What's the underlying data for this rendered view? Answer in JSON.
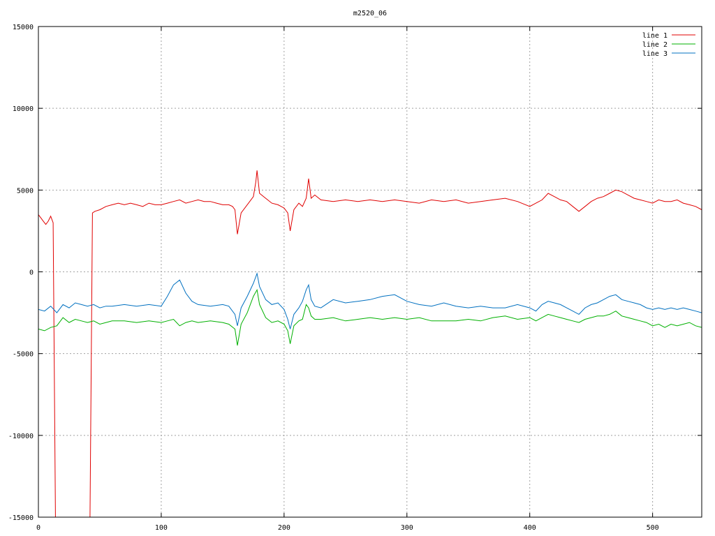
{
  "chart_data": {
    "type": "line",
    "title": "m2520_06",
    "xlabel": "",
    "ylabel": "",
    "xlim": [
      0,
      540
    ],
    "ylim": [
      -15000,
      15000
    ],
    "x_ticks": [
      0,
      100,
      200,
      300,
      400,
      500
    ],
    "y_ticks": [
      -15000,
      -10000,
      -5000,
      0,
      5000,
      10000,
      15000
    ],
    "grid": true,
    "legend_position": "top-right",
    "series": [
      {
        "name": "line 1",
        "color": "#e00000",
        "x": [
          0,
          2,
          4,
          6,
          8,
          10,
          12,
          14,
          16,
          30,
          40,
          42,
          44,
          46,
          50,
          55,
          60,
          65,
          70,
          75,
          80,
          85,
          90,
          95,
          100,
          105,
          110,
          115,
          120,
          125,
          130,
          135,
          140,
          145,
          150,
          155,
          158,
          160,
          162,
          165,
          170,
          175,
          177,
          178,
          180,
          185,
          190,
          195,
          200,
          203,
          205,
          208,
          212,
          215,
          218,
          220,
          222,
          225,
          230,
          240,
          250,
          260,
          270,
          280,
          290,
          300,
          310,
          320,
          330,
          340,
          350,
          360,
          370,
          380,
          390,
          400,
          405,
          410,
          415,
          420,
          425,
          430,
          435,
          440,
          445,
          450,
          455,
          460,
          465,
          470,
          475,
          480,
          485,
          490,
          495,
          500,
          505,
          510,
          515,
          520,
          525,
          530,
          535,
          540
        ],
        "y": [
          3500,
          3300,
          3100,
          2900,
          3100,
          3400,
          3000,
          -16000,
          -16000,
          -16000,
          -16000,
          -15000,
          3600,
          3700,
          3800,
          4000,
          4100,
          4200,
          4100,
          4200,
          4100,
          4000,
          4200,
          4100,
          4100,
          4200,
          4300,
          4400,
          4200,
          4300,
          4400,
          4300,
          4300,
          4200,
          4100,
          4100,
          4000,
          3800,
          2300,
          3600,
          4100,
          4600,
          5500,
          6200,
          4800,
          4500,
          4200,
          4100,
          3900,
          3600,
          2500,
          3800,
          4200,
          4000,
          4500,
          5700,
          4500,
          4700,
          4400,
          4300,
          4400,
          4300,
          4400,
          4300,
          4400,
          4300,
          4200,
          4400,
          4300,
          4400,
          4200,
          4300,
          4400,
          4500,
          4300,
          4000,
          4200,
          4400,
          4800,
          4600,
          4400,
          4300,
          4000,
          3700,
          4000,
          4300,
          4500,
          4600,
          4800,
          5000,
          4900,
          4700,
          4500,
          4400,
          4300,
          4200,
          4400,
          4300,
          4300,
          4400,
          4200,
          4100,
          4000,
          3800
        ]
      },
      {
        "name": "line 2",
        "color": "#00b000",
        "x": [
          0,
          5,
          10,
          15,
          20,
          25,
          30,
          35,
          40,
          45,
          50,
          55,
          60,
          70,
          80,
          90,
          100,
          105,
          110,
          115,
          120,
          125,
          130,
          140,
          150,
          155,
          160,
          162,
          165,
          170,
          175,
          178,
          180,
          185,
          190,
          195,
          200,
          203,
          205,
          208,
          212,
          215,
          218,
          220,
          222,
          225,
          230,
          240,
          250,
          260,
          270,
          280,
          290,
          300,
          310,
          320,
          330,
          340,
          350,
          360,
          370,
          380,
          390,
          400,
          405,
          410,
          415,
          420,
          425,
          430,
          435,
          440,
          445,
          450,
          455,
          460,
          465,
          470,
          475,
          480,
          485,
          490,
          495,
          500,
          505,
          510,
          515,
          520,
          525,
          530,
          535,
          540
        ],
        "y": [
          -3500,
          -3600,
          -3400,
          -3300,
          -2800,
          -3100,
          -2900,
          -3000,
          -3100,
          -3000,
          -3200,
          -3100,
          -3000,
          -3000,
          -3100,
          -3000,
          -3100,
          -3000,
          -2900,
          -3300,
          -3100,
          -3000,
          -3100,
          -3000,
          -3100,
          -3200,
          -3500,
          -4500,
          -3200,
          -2500,
          -1500,
          -1100,
          -2000,
          -2800,
          -3100,
          -3000,
          -3200,
          -3600,
          -4400,
          -3300,
          -3000,
          -2900,
          -2000,
          -2200,
          -2700,
          -2900,
          -2900,
          -2800,
          -3000,
          -2900,
          -2800,
          -2900,
          -2800,
          -2900,
          -2800,
          -3000,
          -3000,
          -3000,
          -2900,
          -3000,
          -2800,
          -2700,
          -2900,
          -2800,
          -3000,
          -2800,
          -2600,
          -2700,
          -2800,
          -2900,
          -3000,
          -3100,
          -2900,
          -2800,
          -2700,
          -2700,
          -2600,
          -2400,
          -2700,
          -2800,
          -2900,
          -3000,
          -3100,
          -3300,
          -3200,
          -3400,
          -3200,
          -3300,
          -3200,
          -3100,
          -3300,
          -3400
        ]
      },
      {
        "name": "line 3",
        "color": "#0070c0",
        "x": [
          0,
          5,
          10,
          15,
          20,
          25,
          30,
          35,
          40,
          45,
          50,
          55,
          60,
          70,
          80,
          90,
          100,
          105,
          110,
          115,
          120,
          125,
          130,
          140,
          150,
          155,
          160,
          162,
          165,
          170,
          175,
          178,
          180,
          185,
          190,
          195,
          200,
          203,
          205,
          208,
          212,
          215,
          218,
          220,
          222,
          225,
          230,
          240,
          250,
          260,
          270,
          280,
          290,
          300,
          310,
          320,
          330,
          340,
          350,
          360,
          370,
          380,
          390,
          400,
          405,
          410,
          415,
          420,
          425,
          430,
          435,
          440,
          445,
          450,
          455,
          460,
          465,
          470,
          475,
          480,
          485,
          490,
          495,
          500,
          505,
          510,
          515,
          520,
          525,
          530,
          535,
          540
        ],
        "y": [
          -2300,
          -2400,
          -2100,
          -2500,
          -2000,
          -2200,
          -1900,
          -2000,
          -2100,
          -2000,
          -2200,
          -2100,
          -2100,
          -2000,
          -2100,
          -2000,
          -2100,
          -1500,
          -800,
          -500,
          -1300,
          -1800,
          -2000,
          -2100,
          -2000,
          -2100,
          -2600,
          -3300,
          -2200,
          -1500,
          -700,
          -100,
          -900,
          -1700,
          -2000,
          -1900,
          -2300,
          -2900,
          -3500,
          -2600,
          -2200,
          -1800,
          -1100,
          -800,
          -1700,
          -2100,
          -2200,
          -1700,
          -1900,
          -1800,
          -1700,
          -1500,
          -1400,
          -1800,
          -2000,
          -2100,
          -1900,
          -2100,
          -2200,
          -2100,
          -2200,
          -2200,
          -2000,
          -2200,
          -2400,
          -2000,
          -1800,
          -1900,
          -2000,
          -2200,
          -2400,
          -2600,
          -2200,
          -2000,
          -1900,
          -1700,
          -1500,
          -1400,
          -1700,
          -1800,
          -1900,
          -2000,
          -2200,
          -2300,
          -2200,
          -2300,
          -2200,
          -2300,
          -2200,
          -2300,
          -2400,
          -2500
        ]
      }
    ]
  }
}
